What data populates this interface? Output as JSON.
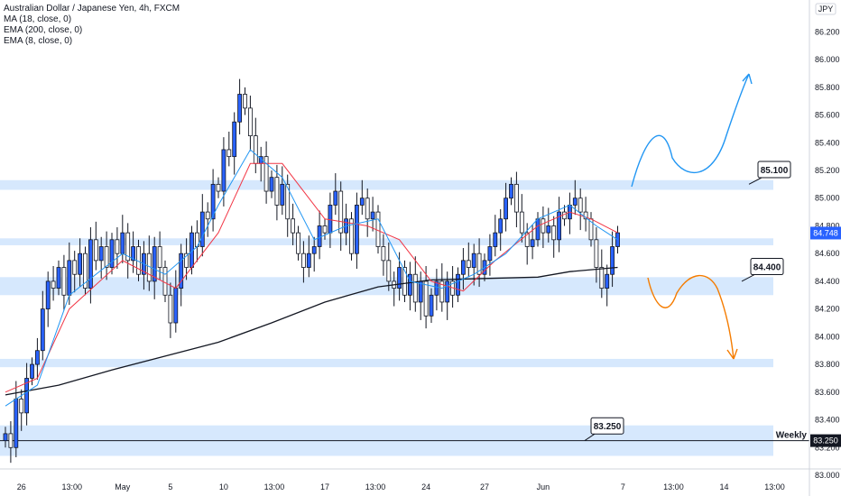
{
  "legend": {
    "title": "Australian Dollar / Japanese Yen, 4h, FXCM",
    "indicators": [
      "MA (18, close, 0)",
      "EMA (200, close, 0)",
      "EMA (8, close, 0)"
    ]
  },
  "currency_label": "JPY",
  "colors": {
    "up": "#2962ff",
    "down": "#ffffff",
    "candle_outline": "#131722",
    "ma18": "#2196f3",
    "ema200": "#131722",
    "ema8": "#f23645",
    "zone": "#bbd9fb",
    "arrow_up": "#2196f3",
    "arrow_down": "#f57c00",
    "last_price_bg": "#2962ff",
    "weekly_bg": "#131722"
  },
  "chart_data": {
    "type": "candlestick",
    "symbol": "AUDJPY",
    "timeframe": "4h",
    "ylim": [
      83.0,
      86.3
    ],
    "y_ticks": [
      "83.000",
      "83.200",
      "83.400",
      "83.600",
      "83.800",
      "84.000",
      "84.200",
      "84.400",
      "84.600",
      "84.800",
      "85.000",
      "85.200",
      "85.400",
      "85.600",
      "85.800",
      "86.000",
      "86.200"
    ],
    "x_tick_labels": [
      {
        "label": "26",
        "index": 3
      },
      {
        "label": "13:00",
        "index": 12.5
      },
      {
        "label": "May",
        "index": 22
      },
      {
        "label": "5",
        "index": 31
      },
      {
        "label": "10",
        "index": 41
      },
      {
        "label": "13:00",
        "index": 50.5
      },
      {
        "label": "17",
        "index": 60
      },
      {
        "label": "13:00",
        "index": 69.5
      },
      {
        "label": "24",
        "index": 79
      },
      {
        "label": "27",
        "index": 90
      },
      {
        "label": "Jun",
        "index": 101
      },
      {
        "label": "7",
        "index": 116
      },
      {
        "label": "13:00",
        "index": 125.5
      },
      {
        "label": "14",
        "index": 135
      },
      {
        "label": "13:00",
        "index": 144.5
      }
    ],
    "candles_close": [
      83.3,
      83.2,
      83.55,
      83.45,
      83.7,
      83.8,
      83.9,
      84.2,
      84.4,
      84.35,
      84.5,
      84.3,
      84.55,
      84.45,
      84.6,
      84.35,
      84.7,
      84.55,
      84.65,
      84.5,
      84.7,
      84.6,
      84.75,
      84.55,
      84.65,
      84.45,
      84.6,
      84.4,
      84.65,
      84.5,
      84.3,
      84.1,
      84.35,
      84.6,
      84.5,
      84.75,
      84.65,
      84.9,
      84.85,
      85.1,
      85.05,
      85.35,
      85.3,
      85.55,
      85.75,
      85.65,
      85.45,
      85.25,
      85.3,
      85.05,
      85.15,
      84.95,
      85.1,
      84.85,
      84.75,
      84.6,
      84.5,
      84.6,
      84.65,
      84.8,
      84.75,
      84.95,
      85.05,
      84.75,
      84.85,
      84.6,
      84.95,
      85.0,
      84.85,
      84.9,
      84.65,
      84.55,
      84.4,
      84.35,
      84.5,
      84.3,
      84.45,
      84.25,
      84.4,
      84.15,
      84.3,
      84.4,
      84.25,
      84.4,
      84.3,
      84.45,
      84.55,
      84.5,
      84.6,
      84.45,
      84.55,
      84.65,
      84.75,
      84.85,
      85.0,
      85.1,
      84.9,
      84.75,
      84.65,
      84.7,
      84.85,
      84.75,
      84.8,
      84.7,
      84.9,
      84.85,
      84.95,
      85.0,
      84.9,
      84.85,
      84.7,
      84.5,
      84.35,
      84.45,
      84.65,
      84.75
    ],
    "ma18_value_last": 84.75,
    "ema200_path": [
      [
        0,
        83.58
      ],
      [
        10,
        83.65
      ],
      [
        20,
        83.76
      ],
      [
        30,
        83.86
      ],
      [
        40,
        83.96
      ],
      [
        50,
        84.1
      ],
      [
        60,
        84.25
      ],
      [
        70,
        84.36
      ],
      [
        80,
        84.41
      ],
      [
        90,
        84.42
      ],
      [
        100,
        84.43
      ],
      [
        106,
        84.47
      ],
      [
        115,
        84.5
      ]
    ],
    "ema8_path": [
      [
        0,
        83.6
      ],
      [
        6,
        83.7
      ],
      [
        12,
        84.2
      ],
      [
        22,
        84.55
      ],
      [
        32,
        84.35
      ],
      [
        40,
        84.75
      ],
      [
        46,
        85.25
      ],
      [
        52,
        85.25
      ],
      [
        60,
        84.85
      ],
      [
        68,
        84.8
      ],
      [
        74,
        84.7
      ],
      [
        80,
        84.4
      ],
      [
        86,
        84.33
      ],
      [
        92,
        84.55
      ],
      [
        100,
        84.8
      ],
      [
        106,
        84.9
      ],
      [
        110,
        84.85
      ],
      [
        115,
        84.75
      ]
    ],
    "ma18_path": [
      [
        0,
        83.5
      ],
      [
        6,
        83.65
      ],
      [
        12,
        84.3
      ],
      [
        22,
        84.6
      ],
      [
        30,
        84.45
      ],
      [
        36,
        84.65
      ],
      [
        40,
        84.95
      ],
      [
        46,
        85.35
      ],
      [
        52,
        85.15
      ],
      [
        58,
        84.7
      ],
      [
        64,
        84.8
      ],
      [
        70,
        84.85
      ],
      [
        76,
        84.4
      ],
      [
        82,
        84.35
      ],
      [
        88,
        84.45
      ],
      [
        94,
        84.6
      ],
      [
        100,
        84.85
      ],
      [
        106,
        84.95
      ],
      [
        111,
        84.8
      ],
      [
        115,
        84.7
      ]
    ],
    "zones": [
      {
        "low": 85.06,
        "high": 85.13
      },
      {
        "low": 84.66,
        "high": 84.71
      },
      {
        "low": 84.3,
        "high": 84.43
      },
      {
        "low": 83.78,
        "high": 83.84
      },
      {
        "low": 83.14,
        "high": 83.36
      }
    ],
    "weekly_line": 83.25,
    "callouts": [
      {
        "text": "85.100",
        "price": 85.1,
        "label_price": 85.2
      },
      {
        "text": "84.400",
        "price": 84.4,
        "label_price": 84.5
      },
      {
        "text": "83.250",
        "price": 83.25,
        "label_price": 83.35
      }
    ],
    "last_price": "84.748",
    "weekly_label": "Weekly",
    "weekly_price_label": "83.250"
  }
}
